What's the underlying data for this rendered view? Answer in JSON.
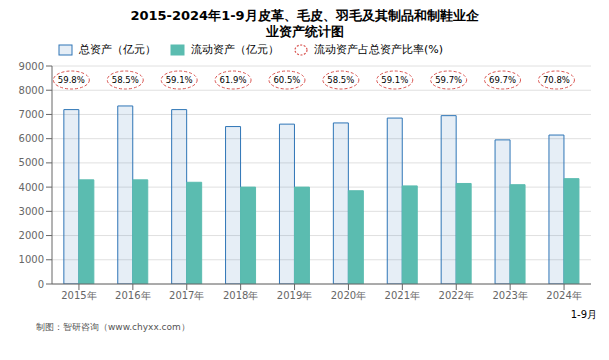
{
  "chart_data": {
    "type": "bar",
    "title": "2015-2024年1-9月皮革、毛皮、羽毛及其制品和制鞋业企",
    "subtitle": "业资产统计图",
    "xlabel": "1-9月",
    "annotations": [
      "制图：智研咨询（www.chyxx.com）"
    ],
    "categories": [
      "2015年",
      "2016年",
      "2017年",
      "2018年",
      "2019年",
      "2020年",
      "2021年",
      "2022年",
      "2023年",
      "2024年"
    ],
    "series": [
      {
        "name": "总资产（亿元）",
        "type": "bar",
        "color": "#2e75b6",
        "values": [
          7200,
          7350,
          7200,
          6500,
          6600,
          6650,
          6850,
          6950,
          5950,
          6150
        ]
      },
      {
        "name": "流动资产（亿元）",
        "type": "bar",
        "color": "#5bbcb0",
        "values": [
          4300,
          4300,
          4200,
          4000,
          4000,
          3850,
          4050,
          4150,
          4100,
          4350
        ]
      },
      {
        "name": "流动资产占总资产比率(%)",
        "type": "label",
        "color": "#d9534f",
        "marker": "ellipse",
        "line_style": "dashed",
        "values": [
          59.8,
          58.5,
          59.1,
          61.9,
          60.5,
          58.5,
          59.1,
          59.7,
          69.7,
          70.8
        ],
        "value_labels": [
          "59.8%",
          "58.5%",
          "59.1%",
          "61.9%",
          "60.5%",
          "58.5%",
          "59.1%",
          "59.7%",
          "69.7%",
          "70.8%"
        ]
      }
    ],
    "ylim": [
      0,
      9000
    ],
    "yticks": [
      0,
      1000,
      2000,
      3000,
      4000,
      5000,
      6000,
      7000,
      8000,
      9000
    ],
    "grid": true,
    "legend": "upper left"
  }
}
